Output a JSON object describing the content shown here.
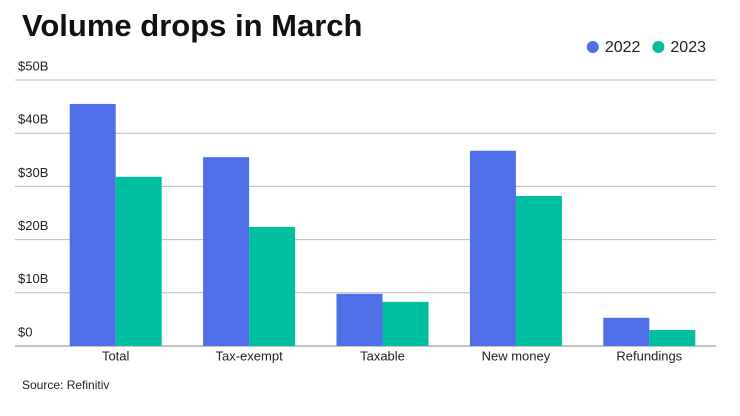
{
  "chart_data": {
    "type": "bar",
    "title": "Volume drops in March",
    "source": "Source: Refinitiv",
    "categories": [
      "Total",
      "Tax-exempt",
      "Taxable",
      "New money",
      "Refundings"
    ],
    "series": [
      {
        "name": "2022",
        "color": "#4f6fe8",
        "values": [
          45.5,
          35.5,
          9.8,
          36.7,
          5.3
        ]
      },
      {
        "name": "2023",
        "color": "#00bfa0",
        "values": [
          31.8,
          22.4,
          8.3,
          28.2,
          3.0
        ]
      }
    ],
    "ylim": [
      0,
      50
    ],
    "yticks": [
      {
        "value": 0,
        "label": "$0"
      },
      {
        "value": 10,
        "label": "$10B"
      },
      {
        "value": 20,
        "label": "$20B"
      },
      {
        "value": 30,
        "label": "$30B"
      },
      {
        "value": 40,
        "label": "$40B"
      },
      {
        "value": 50,
        "label": "$50B"
      }
    ],
    "grid": true,
    "legend": "top-right"
  }
}
